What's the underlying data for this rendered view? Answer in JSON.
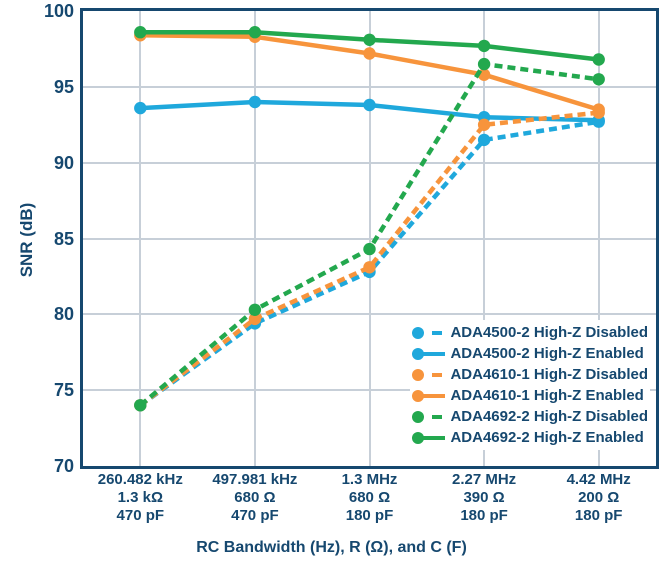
{
  "chart_data": {
    "type": "line",
    "title": "",
    "ylabel": "SNR (dB)",
    "xlabel": "RC Bandwidth (Hz), R (Ω), and C (F)",
    "ylim": [
      70,
      100
    ],
    "yticks": [
      70,
      75,
      80,
      85,
      90,
      95,
      100
    ],
    "grid": true,
    "legend_position": "inside-bottom-right",
    "categories": [
      [
        "260.482 kHz",
        "1.3 kΩ",
        "470 pF"
      ],
      [
        "497.981 kHz",
        "680 Ω",
        "470 pF"
      ],
      [
        "1.3 MHz",
        "680 Ω",
        "180 pF"
      ],
      [
        "2.27 MHz",
        "390 Ω",
        "180 pF"
      ],
      [
        "4.42 MHz",
        "200 Ω",
        "180 pF"
      ]
    ],
    "series": [
      {
        "name": "ADA4500-2 High-Z Disabled",
        "color": "#1FA8DC",
        "style": "dashed",
        "values": [
          74.0,
          79.4,
          82.8,
          91.5,
          92.7
        ]
      },
      {
        "name": "ADA4500-2 High-Z Enabled",
        "color": "#1FA8DC",
        "style": "solid",
        "values": [
          93.6,
          94.0,
          93.8,
          93.0,
          92.8
        ]
      },
      {
        "name": "ADA4610-1 High-Z Disabled",
        "color": "#F7943C",
        "style": "dashed",
        "values": [
          74.0,
          79.7,
          83.1,
          92.5,
          93.3
        ]
      },
      {
        "name": "ADA4610-1 High-Z Enabled",
        "color": "#F7943C",
        "style": "solid",
        "values": [
          98.4,
          98.3,
          97.2,
          95.8,
          93.5
        ]
      },
      {
        "name": "ADA4692-2 High-Z Disabled",
        "color": "#23A84E",
        "style": "dashed",
        "values": [
          74.0,
          80.3,
          84.3,
          96.5,
          95.5
        ]
      },
      {
        "name": "ADA4692-2 High-Z Enabled",
        "color": "#23A84E",
        "style": "solid",
        "values": [
          98.6,
          98.6,
          98.1,
          97.7,
          96.8
        ]
      }
    ],
    "colors": {
      "axis_text": "#16486F",
      "gridline": "#C7CFD8",
      "background": "#FFFFFF"
    }
  }
}
